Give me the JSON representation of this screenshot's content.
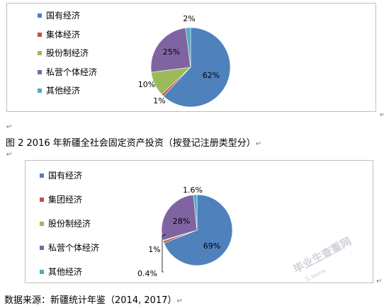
{
  "chart_data": [
    {
      "type": "pie",
      "title": "",
      "categories": [
        "国有经济",
        "集体经济",
        "股份制经济",
        "私营个体经济",
        "其他经济"
      ],
      "values": [
        62,
        1,
        10,
        25,
        2
      ],
      "value_labels": [
        "62%",
        "1%",
        "10%",
        "25%",
        "2%"
      ],
      "colors": [
        "#4f81bd",
        "#c0504d",
        "#9bbb59",
        "#8064a2",
        "#4bacc6"
      ],
      "legend_position": "left"
    },
    {
      "type": "pie",
      "title": "",
      "categories": [
        "国有经济",
        "集团经济",
        "股份制经济",
        "私营个体经济",
        "其他经济"
      ],
      "values": [
        69,
        1,
        0.4,
        28,
        1.6
      ],
      "value_labels": [
        "69%",
        "1%",
        "0.4%",
        "28%",
        "1.6%"
      ],
      "colors": [
        "#4f81bd",
        "#c0504d",
        "#9bbb59",
        "#8064a2",
        "#4bacc6"
      ],
      "legend_position": "left"
    }
  ],
  "captions": {
    "figure2": "图 2     2016 年新疆全社会固定资产投资（按登记注册类型分）",
    "source": "数据来源：新疆统计年鉴（2014, 2017）"
  },
  "watermark": {
    "main": "毕业生查重网",
    "sub": "S.www"
  },
  "para_mark": "↵"
}
